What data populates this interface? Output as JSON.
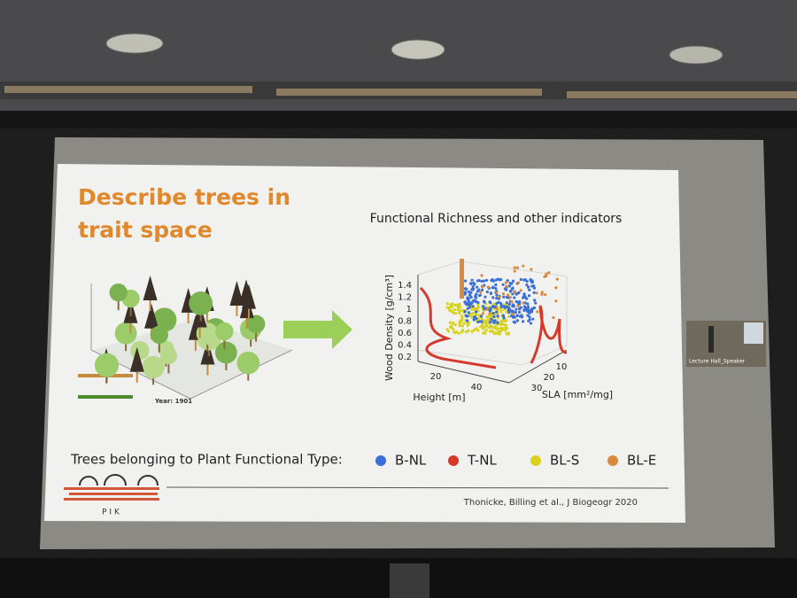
{
  "slide": {
    "title_lines": [
      "Describe trees in",
      "trait space"
    ],
    "figure_title": "Functional Richness and other indicators",
    "plot": {
      "y_label": "Wood Density [g/cm³]",
      "y_ticks": [
        "1.4",
        "1.2",
        "1",
        "0.8",
        "0.6",
        "0.4",
        "0.2"
      ],
      "height_label": "Height [m]",
      "height_ticks": [
        "20",
        "40"
      ],
      "sla_label": "SLA [mm²/mg]",
      "sla_ticks": [
        "10",
        "20",
        "30"
      ]
    },
    "left_image": {
      "year": "Year: 1901"
    },
    "legend": {
      "prefix": "Trees belonging to Plant Functional Type:",
      "items": [
        {
          "name": "B-NL",
          "color": "#3b6fd8"
        },
        {
          "name": "T-NL",
          "color": "#d43a2c"
        },
        {
          "name": "BL-S",
          "color": "#d8d21e"
        },
        {
          "name": "BL-E",
          "color": "#d98a3a"
        }
      ]
    },
    "logo": "P I K",
    "citation": "Thonicke, Billing et al., J Biogeogr 2020"
  },
  "video": {
    "label": "Lecture Hall_Speaker"
  }
}
